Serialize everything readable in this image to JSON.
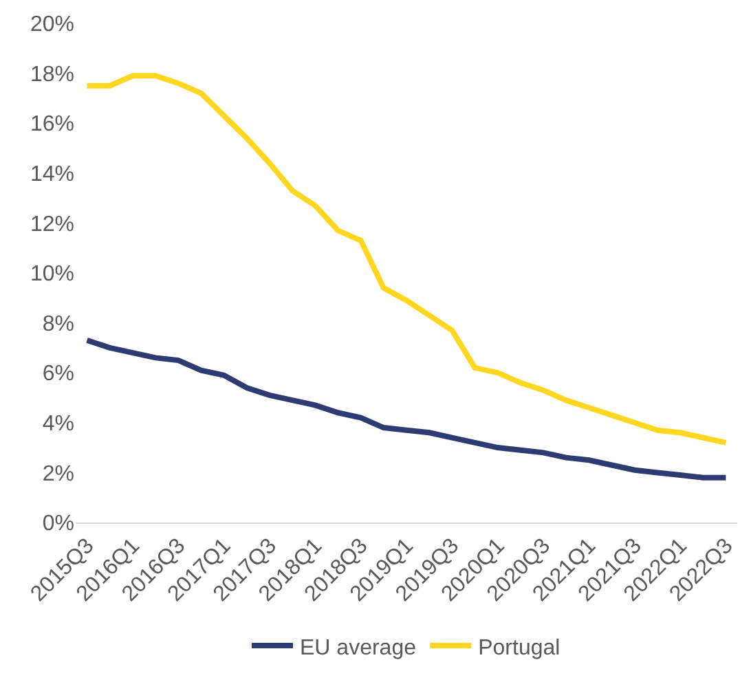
{
  "chart_data": {
    "type": "line",
    "categories": [
      "2015Q3",
      null,
      "2016Q1",
      null,
      "2016Q3",
      null,
      "2017Q1",
      null,
      "2017Q3",
      null,
      "2018Q1",
      null,
      "2018Q3",
      null,
      "2019Q1",
      null,
      "2019Q3",
      null,
      "2020Q1",
      null,
      "2020Q3",
      null,
      "2021Q1",
      null,
      "2021Q3",
      null,
      "2022Q1",
      null,
      "2022Q3"
    ],
    "series": [
      {
        "name": "EU average",
        "color": "#2e3a72",
        "values": [
          7.3,
          7.0,
          6.8,
          6.6,
          6.5,
          6.1,
          5.9,
          5.4,
          5.1,
          4.9,
          4.7,
          4.4,
          4.2,
          3.8,
          3.7,
          3.6,
          3.4,
          3.2,
          3.0,
          2.9,
          2.8,
          2.6,
          2.5,
          2.3,
          2.1,
          2.0,
          1.9,
          1.8,
          1.8
        ]
      },
      {
        "name": "Portugal",
        "color": "#ffd620",
        "values": [
          17.5,
          17.5,
          17.9,
          17.9,
          17.6,
          17.2,
          16.3,
          15.4,
          14.4,
          13.3,
          12.7,
          11.7,
          11.3,
          9.4,
          8.9,
          8.3,
          7.7,
          6.2,
          6.0,
          5.6,
          5.3,
          4.9,
          4.6,
          4.3,
          4.0,
          3.7,
          3.6,
          3.4,
          3.2
        ]
      }
    ],
    "ylim": [
      0,
      20
    ],
    "yticks": [
      {
        "value": 0,
        "label": "0%"
      },
      {
        "value": 2,
        "label": "2%"
      },
      {
        "value": 4,
        "label": "4%"
      },
      {
        "value": 6,
        "label": "6%"
      },
      {
        "value": 8,
        "label": "8%"
      },
      {
        "value": 10,
        "label": "10%"
      },
      {
        "value": 12,
        "label": "12%"
      },
      {
        "value": 14,
        "label": "14%"
      },
      {
        "value": 16,
        "label": "16%"
      },
      {
        "value": 18,
        "label": "18%"
      },
      {
        "value": 20,
        "label": "20%"
      }
    ],
    "legend": "bottom",
    "marker": "none",
    "line_style": "solid"
  }
}
